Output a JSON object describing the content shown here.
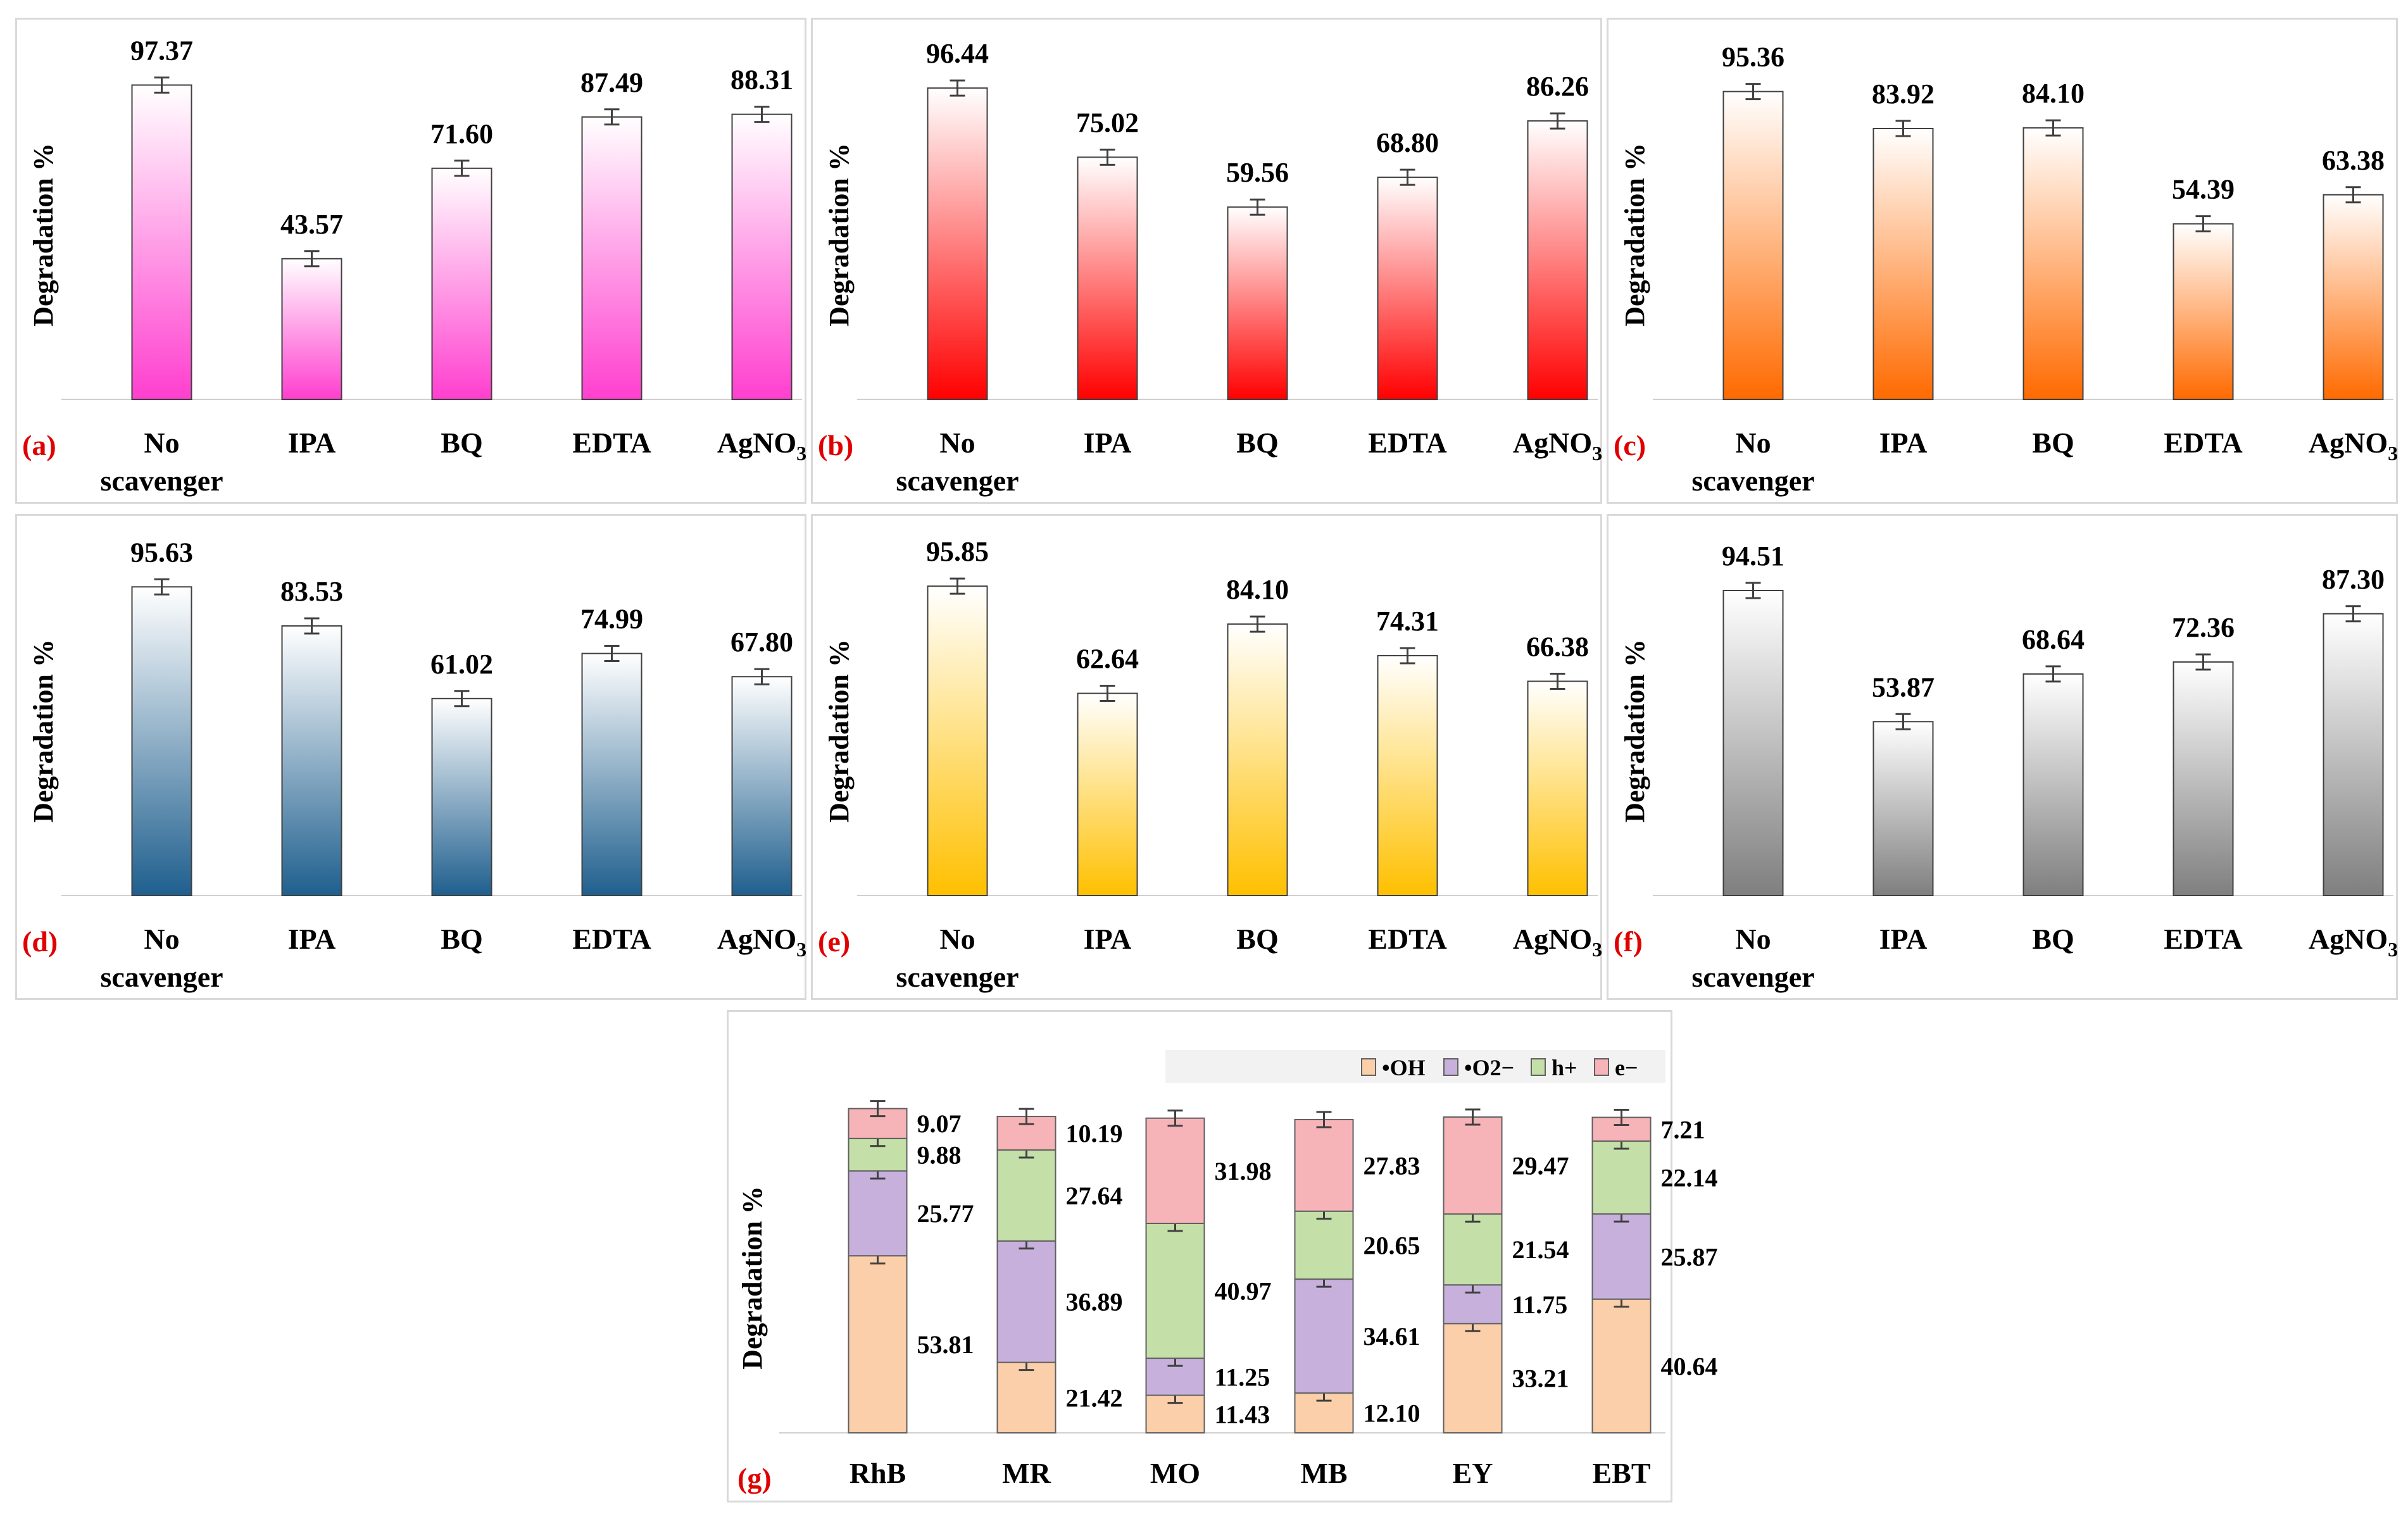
{
  "panel_labels": [
    "(a)",
    "(b)",
    "(c)",
    "(d)",
    "(e)",
    "(f)",
    "(g)"
  ],
  "colors": {
    "a": "#ff3fcf",
    "b": "#ff0000",
    "c": "#ff6a00",
    "d": "#1f5f8e",
    "e": "#ffc000",
    "f": "#7f7f7f",
    "OH": "#fbcfa9",
    "O2": "#c7b1dc",
    "h": "#c4dfa7",
    "e_minus": "#f7b4b8"
  },
  "chart_data": [
    {
      "id": "a",
      "type": "bar",
      "ylabel": "Degradation %",
      "ylim": [
        0,
        100
      ],
      "categories": [
        [
          "No",
          "scavenger"
        ],
        [
          "IPA"
        ],
        [
          "BQ"
        ],
        [
          "EDTA"
        ],
        [
          "AgNO",
          "3"
        ]
      ],
      "values": [
        97.37,
        43.57,
        71.6,
        87.49,
        88.31
      ],
      "labels": [
        "97.37",
        "43.57",
        "71.60",
        "87.49",
        "88.31"
      ]
    },
    {
      "id": "b",
      "type": "bar",
      "ylabel": "Degradation %",
      "ylim": [
        0,
        100
      ],
      "categories": [
        [
          "No",
          "scavenger"
        ],
        [
          "IPA"
        ],
        [
          "BQ"
        ],
        [
          "EDTA"
        ],
        [
          "AgNO",
          "3"
        ]
      ],
      "values": [
        96.44,
        75.02,
        59.56,
        68.8,
        86.26
      ],
      "labels": [
        "96.44",
        "75.02",
        "59.56",
        "68.80",
        "86.26"
      ]
    },
    {
      "id": "c",
      "type": "bar",
      "ylabel": "Degradation %",
      "ylim": [
        0,
        100
      ],
      "categories": [
        [
          "No",
          "scavenger"
        ],
        [
          "IPA"
        ],
        [
          "BQ"
        ],
        [
          "EDTA"
        ],
        [
          "AgNO",
          "3"
        ]
      ],
      "values": [
        95.36,
        83.92,
        84.1,
        54.39,
        63.38
      ],
      "labels": [
        "95.36",
        "83.92",
        "84.10",
        "54.39",
        "63.38"
      ]
    },
    {
      "id": "d",
      "type": "bar",
      "ylabel": "Degradation %",
      "ylim": [
        0,
        100
      ],
      "categories": [
        [
          "No",
          "scavenger"
        ],
        [
          "IPA"
        ],
        [
          "BQ"
        ],
        [
          "EDTA"
        ],
        [
          "AgNO",
          "3"
        ]
      ],
      "values": [
        95.63,
        83.53,
        61.02,
        74.99,
        67.8
      ],
      "labels": [
        "95.63",
        "83.53",
        "61.02",
        "74.99",
        "67.80"
      ]
    },
    {
      "id": "e",
      "type": "bar",
      "ylabel": "Degradation %",
      "ylim": [
        0,
        100
      ],
      "categories": [
        [
          "No",
          "scavenger"
        ],
        [
          "IPA"
        ],
        [
          "BQ"
        ],
        [
          "EDTA"
        ],
        [
          "AgNO",
          "3"
        ]
      ],
      "values": [
        95.85,
        62.64,
        84.1,
        74.31,
        66.38
      ],
      "labels": [
        "95.85",
        "62.64",
        "84.10",
        "74.31",
        "66.38"
      ]
    },
    {
      "id": "f",
      "type": "bar",
      "ylabel": "Degradation %",
      "ylim": [
        0,
        100
      ],
      "categories": [
        [
          "No",
          "scavenger"
        ],
        [
          "IPA"
        ],
        [
          "BQ"
        ],
        [
          "EDTA"
        ],
        [
          "AgNO",
          "3"
        ]
      ],
      "values": [
        94.51,
        53.87,
        68.64,
        72.36,
        87.3
      ],
      "labels": [
        "94.51",
        "53.87",
        "68.64",
        "72.36",
        "87.30"
      ]
    },
    {
      "id": "g",
      "type": "stacked_bar",
      "ylabel": "Degradation %",
      "ylim": [
        0,
        100
      ],
      "categories": [
        "RhB",
        "MR",
        "MO",
        "MB",
        "EY",
        "EBT"
      ],
      "legend": {
        "position": "top-right"
      },
      "series": [
        {
          "name": "•OH",
          "key": "OH",
          "values": [
            53.81,
            21.42,
            11.43,
            12.1,
            33.21,
            40.64
          ],
          "labels": [
            "53.81",
            "21.42",
            "11.43",
            "12.10",
            "33.21",
            "40.64"
          ]
        },
        {
          "name": "•O2−",
          "key": "O2",
          "values": [
            25.77,
            36.89,
            11.25,
            34.61,
            11.75,
            25.87
          ],
          "labels": [
            "25.77",
            "36.89",
            "11.25",
            "34.61",
            "11.75",
            "25.87"
          ]
        },
        {
          "name": "h+",
          "key": "h",
          "values": [
            9.88,
            27.64,
            40.97,
            20.65,
            21.54,
            22.14
          ],
          "labels": [
            "9.88",
            "27.64",
            "40.97",
            "20.65",
            "21.54",
            "22.14"
          ]
        },
        {
          "name": "e−",
          "key": "e_minus",
          "values": [
            9.07,
            10.19,
            31.98,
            27.83,
            29.47,
            7.21
          ],
          "labels": [
            "9.07",
            "10.19",
            "31.98",
            "27.83",
            "29.47",
            "7.21"
          ]
        }
      ]
    }
  ]
}
